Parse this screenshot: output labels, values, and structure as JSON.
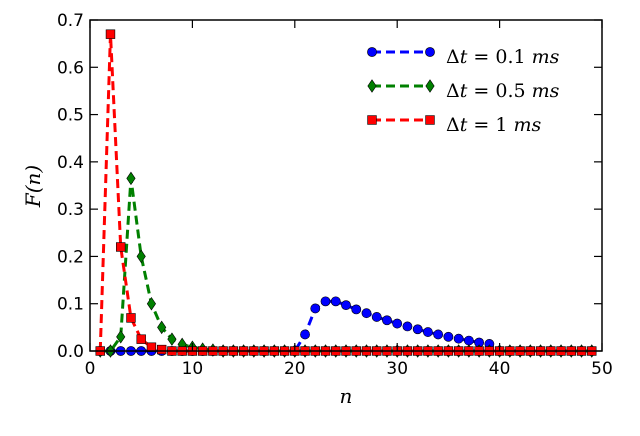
{
  "chart_data": {
    "type": "line",
    "xlabel": "n",
    "ylabel": "F(n)",
    "xlim": [
      0,
      50
    ],
    "ylim": [
      0,
      0.7
    ],
    "xticks": [
      "0",
      "10",
      "20",
      "30",
      "40",
      "50"
    ],
    "yticks": [
      "0.0",
      "0.1",
      "0.2",
      "0.3",
      "0.4",
      "0.5",
      "0.6",
      "0.7"
    ],
    "grid": false,
    "legend_position": "top-right",
    "series": [
      {
        "name": "Δt = 0.1 ms",
        "color": "#0000ff",
        "marker": "circle",
        "x": [
          1,
          2,
          3,
          4,
          5,
          6,
          7,
          8,
          9,
          10,
          11,
          12,
          13,
          14,
          15,
          16,
          17,
          18,
          19,
          20,
          21,
          22,
          23,
          24,
          25,
          26,
          27,
          28,
          29,
          30,
          31,
          32,
          33,
          34,
          35,
          36,
          37,
          38,
          39,
          40,
          41,
          42,
          43,
          44,
          45,
          46,
          47,
          48,
          49
        ],
        "y": [
          0,
          0,
          0,
          0,
          0,
          0,
          0,
          0,
          0,
          0,
          0,
          0,
          0,
          0,
          0,
          0,
          0,
          0,
          0,
          0,
          0.035,
          0.09,
          0.105,
          0.105,
          0.097,
          0.088,
          0.08,
          0.072,
          0.065,
          0.058,
          0.052,
          0.046,
          0.04,
          0.035,
          0.03,
          0.026,
          0.022,
          0.018,
          0.015,
          0,
          0,
          0,
          0,
          0,
          0,
          0,
          0,
          0,
          0
        ]
      },
      {
        "name": "Δt = 0.5 ms",
        "color": "#008000",
        "marker": "diamond",
        "x": [
          1,
          2,
          3,
          4,
          5,
          6,
          7,
          8,
          9,
          10,
          11,
          12,
          13,
          14,
          15,
          16,
          17,
          18,
          19,
          20,
          21,
          22,
          23,
          24,
          25,
          26,
          27,
          28,
          29,
          30,
          31,
          32,
          33,
          34,
          35,
          36,
          37,
          38,
          39,
          40,
          41,
          42,
          43,
          44,
          45,
          46,
          47,
          48,
          49
        ],
        "y": [
          0,
          0,
          0.03,
          0.365,
          0.2,
          0.1,
          0.05,
          0.025,
          0.014,
          0.008,
          0.004,
          0.002,
          0,
          0,
          0,
          0,
          0,
          0,
          0,
          0,
          0,
          0,
          0,
          0,
          0,
          0,
          0,
          0,
          0,
          0,
          0,
          0,
          0,
          0,
          0,
          0,
          0,
          0,
          0,
          0,
          0,
          0,
          0,
          0,
          0,
          0,
          0,
          0,
          0
        ]
      },
      {
        "name": "Δt = 1 ms",
        "color": "#ff0000",
        "marker": "square",
        "x": [
          1,
          2,
          3,
          4,
          5,
          6,
          7,
          8,
          9,
          10,
          11,
          12,
          13,
          14,
          15,
          16,
          17,
          18,
          19,
          20,
          21,
          22,
          23,
          24,
          25,
          26,
          27,
          28,
          29,
          30,
          31,
          32,
          33,
          34,
          35,
          36,
          37,
          38,
          39,
          40,
          41,
          42,
          43,
          44,
          45,
          46,
          47,
          48,
          49
        ],
        "y": [
          0,
          0.67,
          0.22,
          0.07,
          0.025,
          0.008,
          0.003,
          0,
          0,
          0,
          0,
          0,
          0,
          0,
          0,
          0,
          0,
          0,
          0,
          0,
          0,
          0,
          0,
          0,
          0,
          0,
          0,
          0,
          0,
          0,
          0,
          0,
          0,
          0,
          0,
          0,
          0,
          0,
          0,
          0,
          0,
          0,
          0,
          0,
          0,
          0,
          0,
          0,
          0
        ]
      }
    ]
  },
  "legend": [
    {
      "delta": "Δ",
      "var": "t",
      "eq": " = ",
      "value": "0.1",
      "unit": "ms"
    },
    {
      "delta": "Δ",
      "var": "t",
      "eq": " = ",
      "value": "0.5",
      "unit": "ms"
    },
    {
      "delta": "Δ",
      "var": "t",
      "eq": " = ",
      "value": "1",
      "unit": "ms"
    }
  ]
}
